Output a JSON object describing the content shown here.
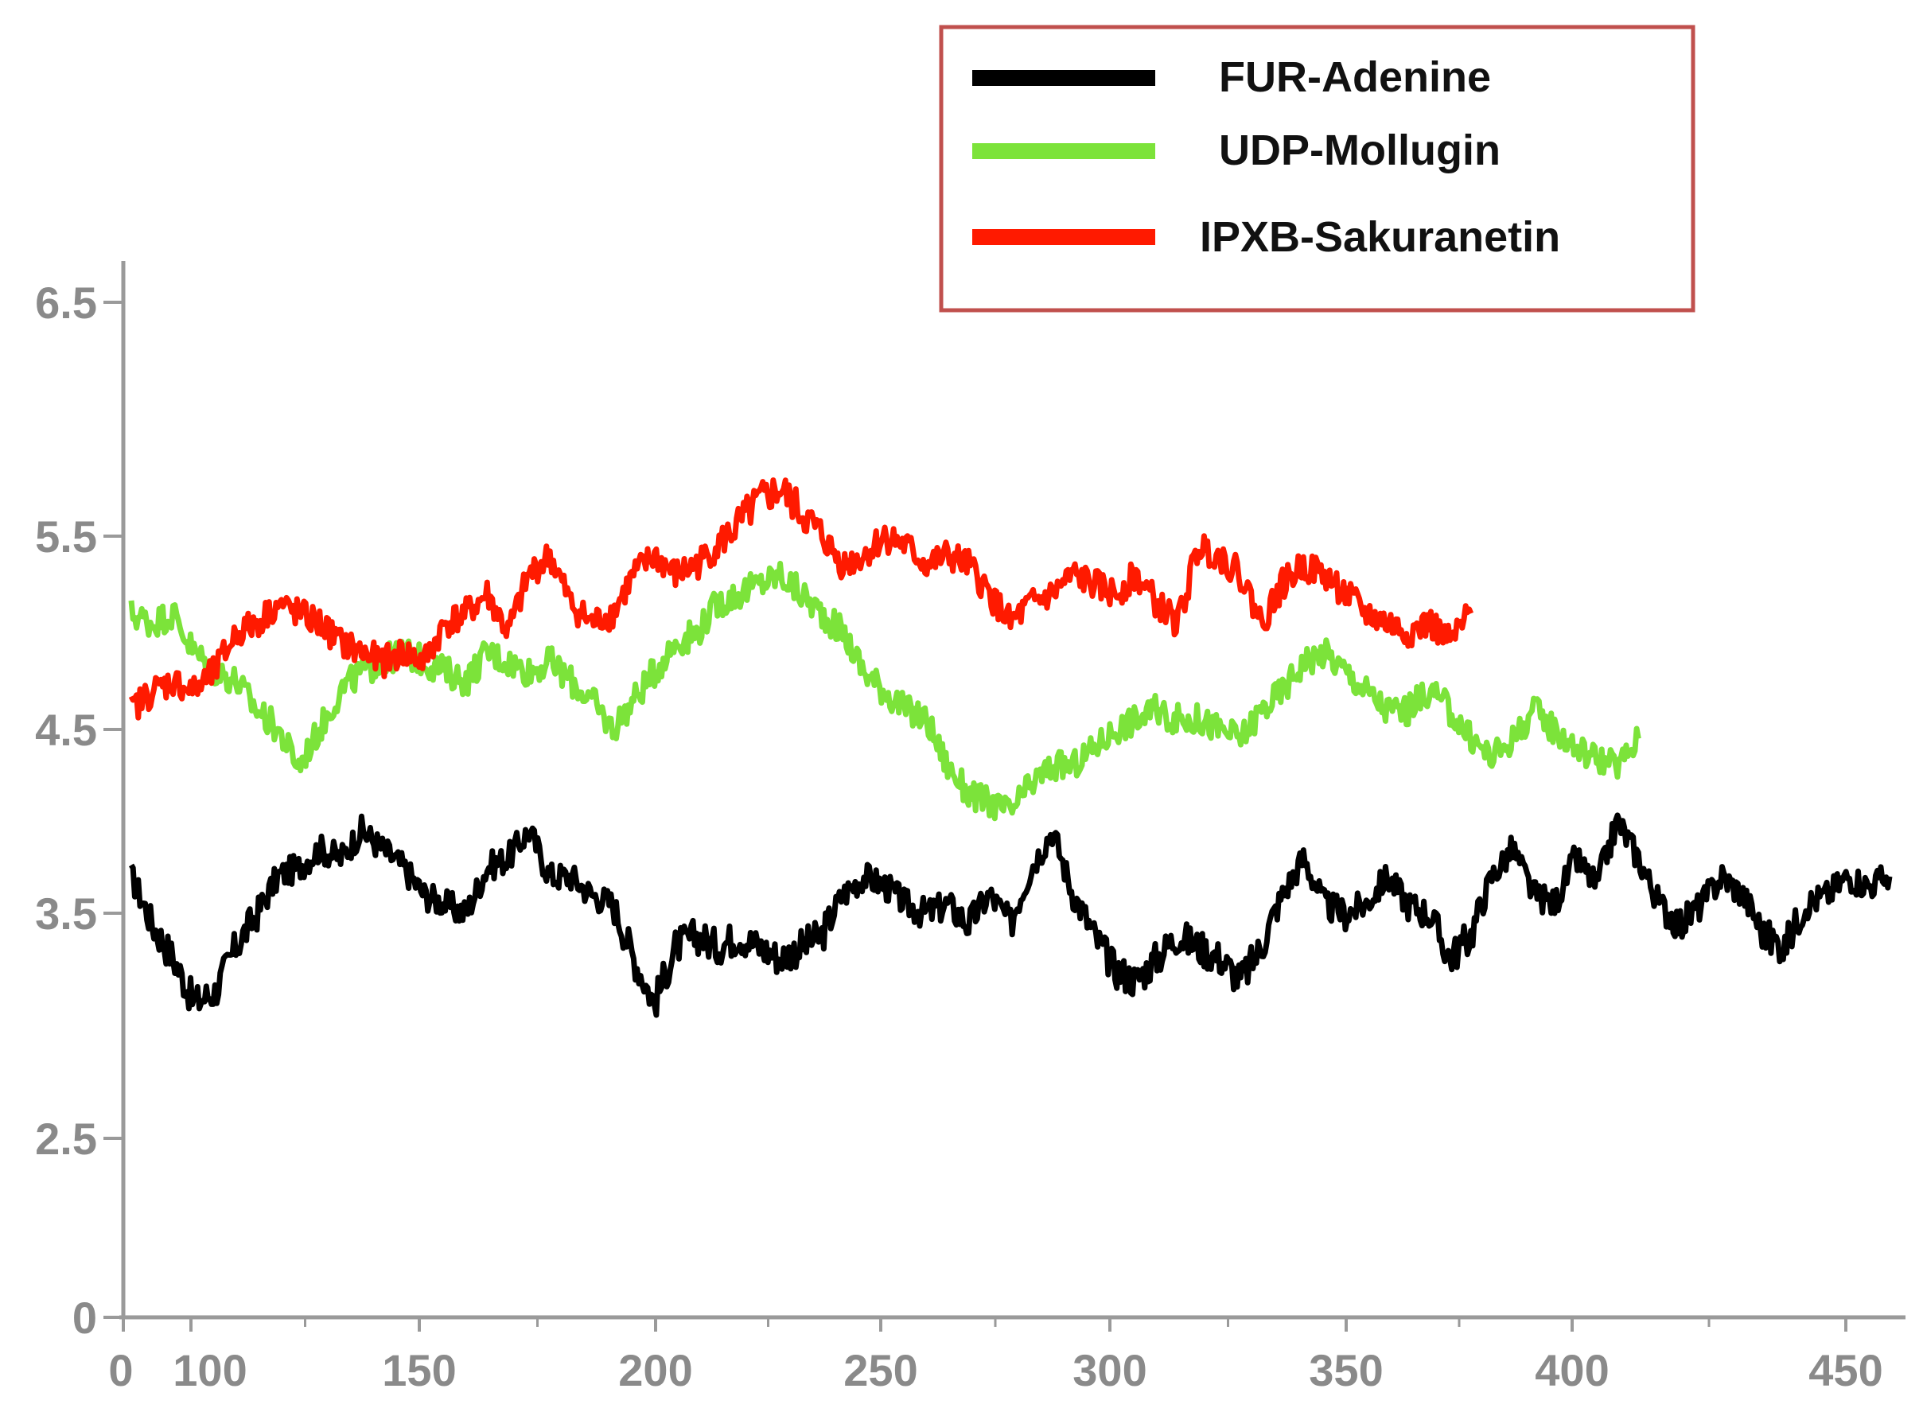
{
  "chart_data": {
    "type": "line",
    "title": "",
    "xlabel": "",
    "ylabel": "",
    "x_ticks": [
      "0",
      "100",
      "150",
      "200",
      "250",
      "300",
      "350",
      "400",
      "450"
    ],
    "y_ticks": [
      "0",
      "2.5",
      "3.5",
      "4.5",
      "5.5",
      "6.5"
    ],
    "grid": false,
    "legend_position": "top-right",
    "series": [
      {
        "name": "FUR-Adenine",
        "color": "#000000",
        "points": [
          [
            0,
            3.7
          ],
          [
            5,
            3.45
          ],
          [
            10,
            3.3
          ],
          [
            15,
            3.1
          ],
          [
            20,
            3.15
          ],
          [
            25,
            3.35
          ],
          [
            30,
            3.5
          ],
          [
            35,
            3.7
          ],
          [
            40,
            3.75
          ],
          [
            45,
            3.85
          ],
          [
            50,
            3.8
          ],
          [
            55,
            3.95
          ],
          [
            60,
            3.85
          ],
          [
            65,
            3.75
          ],
          [
            70,
            3.6
          ],
          [
            75,
            3.55
          ],
          [
            80,
            3.5
          ],
          [
            85,
            3.75
          ],
          [
            90,
            3.8
          ],
          [
            95,
            3.95
          ],
          [
            100,
            3.7
          ],
          [
            105,
            3.7
          ],
          [
            110,
            3.6
          ],
          [
            115,
            3.55
          ],
          [
            120,
            3.3
          ],
          [
            125,
            3.1
          ],
          [
            130,
            3.35
          ],
          [
            135,
            3.4
          ],
          [
            140,
            3.35
          ],
          [
            145,
            3.4
          ],
          [
            150,
            3.35
          ],
          [
            155,
            3.3
          ],
          [
            160,
            3.35
          ],
          [
            165,
            3.4
          ],
          [
            170,
            3.6
          ],
          [
            175,
            3.7
          ],
          [
            180,
            3.65
          ],
          [
            185,
            3.55
          ],
          [
            190,
            3.5
          ],
          [
            195,
            3.55
          ],
          [
            200,
            3.45
          ],
          [
            205,
            3.6
          ],
          [
            210,
            3.45
          ],
          [
            215,
            3.75
          ],
          [
            220,
            3.95
          ],
          [
            225,
            3.6
          ],
          [
            230,
            3.4
          ],
          [
            235,
            3.25
          ],
          [
            240,
            3.2
          ],
          [
            245,
            3.3
          ],
          [
            250,
            3.4
          ],
          [
            255,
            3.35
          ],
          [
            260,
            3.3
          ],
          [
            265,
            3.2
          ],
          [
            270,
            3.35
          ],
          [
            275,
            3.6
          ],
          [
            280,
            3.8
          ],
          [
            285,
            3.55
          ],
          [
            290,
            3.5
          ],
          [
            295,
            3.55
          ],
          [
            300,
            3.7
          ],
          [
            305,
            3.55
          ],
          [
            310,
            3.5
          ],
          [
            315,
            3.3
          ],
          [
            320,
            3.4
          ],
          [
            325,
            3.7
          ],
          [
            330,
            3.85
          ],
          [
            335,
            3.6
          ],
          [
            340,
            3.55
          ],
          [
            345,
            3.8
          ],
          [
            350,
            3.65
          ],
          [
            355,
            4.0
          ],
          [
            360,
            3.8
          ],
          [
            365,
            3.55
          ],
          [
            370,
            3.45
          ],
          [
            375,
            3.55
          ],
          [
            380,
            3.7
          ],
          [
            385,
            3.6
          ],
          [
            390,
            3.4
          ],
          [
            395,
            3.35
          ],
          [
            400,
            3.55
          ],
          [
            405,
            3.6
          ],
          [
            410,
            3.7
          ],
          [
            415,
            3.65
          ],
          [
            420,
            3.7
          ]
        ]
      },
      {
        "name": "UDP-Mollugin",
        "color": "#7CE33A",
        "points": [
          [
            0,
            5.1
          ],
          [
            5,
            5.05
          ],
          [
            10,
            5.1
          ],
          [
            15,
            4.9
          ],
          [
            20,
            4.8
          ],
          [
            25,
            4.75
          ],
          [
            30,
            4.6
          ],
          [
            35,
            4.5
          ],
          [
            40,
            4.3
          ],
          [
            45,
            4.5
          ],
          [
            50,
            4.7
          ],
          [
            55,
            4.8
          ],
          [
            60,
            4.85
          ],
          [
            65,
            4.9
          ],
          [
            70,
            4.85
          ],
          [
            75,
            4.8
          ],
          [
            80,
            4.75
          ],
          [
            85,
            4.9
          ],
          [
            90,
            4.85
          ],
          [
            95,
            4.8
          ],
          [
            100,
            4.85
          ],
          [
            105,
            4.75
          ],
          [
            110,
            4.65
          ],
          [
            115,
            4.5
          ],
          [
            120,
            4.65
          ],
          [
            125,
            4.8
          ],
          [
            130,
            4.95
          ],
          [
            135,
            5.0
          ],
          [
            140,
            5.15
          ],
          [
            145,
            5.2
          ],
          [
            150,
            5.25
          ],
          [
            155,
            5.3
          ],
          [
            160,
            5.2
          ],
          [
            165,
            5.1
          ],
          [
            170,
            5.0
          ],
          [
            175,
            4.8
          ],
          [
            180,
            4.7
          ],
          [
            185,
            4.6
          ],
          [
            190,
            4.55
          ],
          [
            195,
            4.3
          ],
          [
            200,
            4.15
          ],
          [
            205,
            4.1
          ],
          [
            210,
            4.05
          ],
          [
            215,
            4.2
          ],
          [
            220,
            4.3
          ],
          [
            225,
            4.3
          ],
          [
            230,
            4.4
          ],
          [
            235,
            4.5
          ],
          [
            240,
            4.55
          ],
          [
            245,
            4.6
          ],
          [
            250,
            4.55
          ],
          [
            255,
            4.55
          ],
          [
            260,
            4.5
          ],
          [
            265,
            4.45
          ],
          [
            270,
            4.6
          ],
          [
            275,
            4.7
          ],
          [
            280,
            4.85
          ],
          [
            285,
            4.9
          ],
          [
            290,
            4.8
          ],
          [
            295,
            4.7
          ],
          [
            300,
            4.6
          ],
          [
            305,
            4.6
          ],
          [
            310,
            4.7
          ],
          [
            315,
            4.6
          ],
          [
            320,
            4.45
          ],
          [
            325,
            4.35
          ],
          [
            330,
            4.45
          ],
          [
            335,
            4.6
          ],
          [
            340,
            4.5
          ],
          [
            345,
            4.4
          ],
          [
            350,
            4.35
          ],
          [
            355,
            4.3
          ],
          [
            360,
            4.45
          ]
        ]
      },
      {
        "name": "IPXB-Sakuranetin",
        "color": "#FF1A00",
        "points": [
          [
            0,
            4.6
          ],
          [
            5,
            4.7
          ],
          [
            10,
            4.75
          ],
          [
            15,
            4.7
          ],
          [
            20,
            4.8
          ],
          [
            25,
            5.0
          ],
          [
            30,
            5.05
          ],
          [
            35,
            5.15
          ],
          [
            40,
            5.1
          ],
          [
            45,
            5.05
          ],
          [
            50,
            4.95
          ],
          [
            55,
            4.9
          ],
          [
            60,
            4.85
          ],
          [
            65,
            4.9
          ],
          [
            70,
            4.85
          ],
          [
            75,
            5.05
          ],
          [
            80,
            5.1
          ],
          [
            85,
            5.2
          ],
          [
            90,
            5.0
          ],
          [
            95,
            5.3
          ],
          [
            100,
            5.4
          ],
          [
            105,
            5.15
          ],
          [
            110,
            5.05
          ],
          [
            115,
            5.1
          ],
          [
            120,
            5.3
          ],
          [
            125,
            5.4
          ],
          [
            130,
            5.3
          ],
          [
            135,
            5.35
          ],
          [
            140,
            5.45
          ],
          [
            145,
            5.55
          ],
          [
            150,
            5.65
          ],
          [
            155,
            5.7
          ],
          [
            160,
            5.6
          ],
          [
            165,
            5.5
          ],
          [
            170,
            5.35
          ],
          [
            175,
            5.4
          ],
          [
            180,
            5.5
          ],
          [
            185,
            5.45
          ],
          [
            190,
            5.35
          ],
          [
            195,
            5.4
          ],
          [
            200,
            5.35
          ],
          [
            205,
            5.2
          ],
          [
            210,
            5.05
          ],
          [
            215,
            5.15
          ],
          [
            220,
            5.2
          ],
          [
            225,
            5.3
          ],
          [
            230,
            5.25
          ],
          [
            235,
            5.2
          ],
          [
            240,
            5.3
          ],
          [
            245,
            5.15
          ],
          [
            250,
            5.05
          ],
          [
            255,
            5.45
          ],
          [
            260,
            5.4
          ],
          [
            265,
            5.3
          ],
          [
            270,
            5.05
          ],
          [
            275,
            5.25
          ],
          [
            280,
            5.35
          ],
          [
            285,
            5.3
          ],
          [
            290,
            5.2
          ],
          [
            295,
            5.1
          ],
          [
            300,
            5.05
          ],
          [
            305,
            5.0
          ],
          [
            310,
            5.05
          ],
          [
            315,
            4.95
          ],
          [
            320,
            5.1
          ]
        ]
      }
    ]
  }
}
